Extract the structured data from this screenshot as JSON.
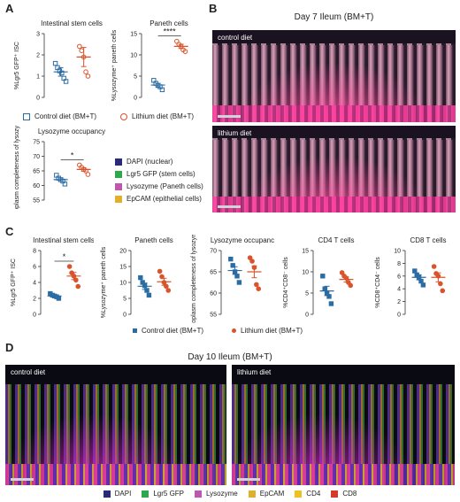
{
  "panels": {
    "A": "A",
    "B": "B",
    "C": "C",
    "D": "D"
  },
  "colors": {
    "control": "#2b6ca3",
    "lithium": "#d9542b",
    "dapi": "#2a2a7a",
    "lgr5": "#2ea84a",
    "lysozyme": "#c056b0",
    "epcam": "#e0b02a",
    "cd4": "#f0c020",
    "cd8": "#d63a2a"
  },
  "panel_a": {
    "legend": {
      "control": "Control diet (BM+T)",
      "lithium": "Lithium diet (BM+T)"
    },
    "stain_legend": [
      "DAPI (nuclear)",
      "Lgr5 GFP (stem cells)",
      "Lysozyme (Paneth cells)",
      "EpCAM (epithelial cells)"
    ]
  },
  "panel_b": {
    "title": "Day 7 Ileum (BM+T)",
    "top_label": "control diet",
    "bottom_label": "lithium diet"
  },
  "panel_c": {
    "legend": {
      "control": "Control diet (BM+T)",
      "lithium": "Lithium diet (BM+T)"
    }
  },
  "panel_d": {
    "title": "Day 10 Ileum (BM+T)",
    "left_label": "control diet",
    "right_label": "lithium diet",
    "legend": [
      "DAPI",
      "Lgr5 GFP",
      "Lysozyme",
      "EpCAM",
      "CD4",
      "CD8"
    ]
  },
  "chart_data": [
    {
      "id": "a1",
      "type": "scatter",
      "title": "Intestinal stem cells",
      "ylabel": "%Lgr5 GFP⁺ ISC",
      "ylim": [
        0,
        3
      ],
      "yticks": [
        0,
        1,
        2,
        3
      ],
      "series": [
        {
          "name": "Control diet (BM+T)",
          "values": [
            1.6,
            1.4,
            1.25,
            1.15,
            0.9,
            0.75
          ],
          "mean": 1.2,
          "sem": 0.2
        },
        {
          "name": "Lithium diet (BM+T)",
          "values": [
            2.4,
            2.2,
            1.9,
            1.2,
            1.0
          ],
          "mean": 1.9,
          "sem": 0.45
        }
      ]
    },
    {
      "id": "a2",
      "type": "scatter",
      "title": "Paneth cells",
      "ylabel": "%Lysozyme⁺ paneth cells",
      "ylim": [
        0,
        15
      ],
      "yticks": [
        0,
        5,
        10,
        15
      ],
      "annotation": "****",
      "series": [
        {
          "name": "Control diet (BM+T)",
          "values": [
            4.0,
            3.3,
            2.8,
            2.5,
            1.8
          ],
          "mean": 2.9,
          "sem": 0.4
        },
        {
          "name": "Lithium diet (BM+T)",
          "values": [
            13.2,
            12.5,
            12.0,
            11.2,
            10.8
          ],
          "mean": 12.0,
          "sem": 0.5
        }
      ]
    },
    {
      "id": "a3",
      "type": "scatter",
      "title": "Lysozyme occupancy",
      "ylabel": "%cytoplasm completeness of lysozyme",
      "ylim": [
        55,
        75
      ],
      "yticks": [
        55,
        60,
        65,
        70,
        75
      ],
      "annotation": "*",
      "series": [
        {
          "name": "Control diet (BM+T)",
          "values": [
            63.5,
            62.5,
            62.0,
            61.5,
            60.5
          ],
          "mean": 62.0,
          "sem": 0.6
        },
        {
          "name": "Lithium diet (BM+T)",
          "values": [
            67.0,
            66.2,
            65.5,
            65.0,
            63.8
          ],
          "mean": 65.5,
          "sem": 0.6
        }
      ]
    },
    {
      "id": "c1",
      "type": "scatter",
      "title": "Intestinal stem cells",
      "ylabel": "%Lgr5 GFP⁺ ISC",
      "ylim": [
        0,
        8
      ],
      "yticks": [
        0,
        2,
        4,
        6,
        8
      ],
      "annotation": "*",
      "series": [
        {
          "name": "Control diet (BM+T)",
          "values": [
            2.6,
            2.4,
            2.3,
            2.2,
            2.0
          ],
          "mean": 2.3,
          "sem": 0.15
        },
        {
          "name": "Lithium diet (BM+T)",
          "values": [
            6.0,
            5.2,
            4.8,
            4.3,
            3.5
          ],
          "mean": 4.8,
          "sem": 0.45
        }
      ]
    },
    {
      "id": "c2",
      "type": "scatter",
      "title": "Paneth cells",
      "ylabel": "%Lysozyme⁺ paneth cells",
      "ylim": [
        0,
        20
      ],
      "yticks": [
        0,
        5,
        10,
        15,
        20
      ],
      "series": [
        {
          "name": "Control diet (BM+T)",
          "values": [
            11.5,
            10.0,
            9.0,
            7.5,
            6.0
          ],
          "mean": 8.8,
          "sem": 1.0
        },
        {
          "name": "Lithium diet (BM+T)",
          "values": [
            13.5,
            11.8,
            10.0,
            8.8,
            7.5
          ],
          "mean": 10.2,
          "sem": 1.1
        }
      ]
    },
    {
      "id": "c3",
      "type": "scatter",
      "title": "Lysozyme occupancy",
      "ylabel": "%cytoplasm completeness of lysozyme",
      "ylim": [
        55,
        70
      ],
      "yticks": [
        55,
        60,
        65,
        70
      ],
      "series": [
        {
          "name": "Control diet (BM+T)",
          "values": [
            68.0,
            66.5,
            65.0,
            64.0,
            62.5
          ],
          "mean": 65.3,
          "sem": 0.9
        },
        {
          "name": "Lithium diet (BM+T)",
          "values": [
            68.3,
            67.5,
            66.0,
            62.0,
            61.0
          ],
          "mean": 65.0,
          "sem": 1.4
        }
      ]
    },
    {
      "id": "c4",
      "type": "scatter",
      "title": "CD4 T cells",
      "ylabel": "%CD4⁺CD8⁻ cells",
      "ylim": [
        0,
        15
      ],
      "yticks": [
        0,
        5,
        10,
        15
      ],
      "series": [
        {
          "name": "Control diet (BM+T)",
          "values": [
            9.0,
            6.0,
            5.0,
            4.2,
            2.5
          ],
          "mean": 5.5,
          "sem": 1.1
        },
        {
          "name": "Lithium diet (BM+T)",
          "values": [
            9.8,
            9.0,
            8.5,
            7.5,
            6.8
          ],
          "mean": 8.2,
          "sem": 0.6
        }
      ]
    },
    {
      "id": "c5",
      "type": "scatter",
      "title": "CD8 T cells",
      "ylabel": "%CD8⁺CD4⁻ cells",
      "ylim": [
        0,
        10
      ],
      "yticks": [
        0,
        2,
        4,
        6,
        8,
        10
      ],
      "series": [
        {
          "name": "Control diet (BM+T)",
          "values": [
            6.8,
            6.2,
            5.8,
            5.2,
            4.6
          ],
          "mean": 5.8,
          "sem": 0.4
        },
        {
          "name": "Lithium diet (BM+T)",
          "values": [
            7.5,
            6.4,
            6.0,
            4.8,
            3.7
          ],
          "mean": 5.8,
          "sem": 0.7
        }
      ]
    }
  ]
}
